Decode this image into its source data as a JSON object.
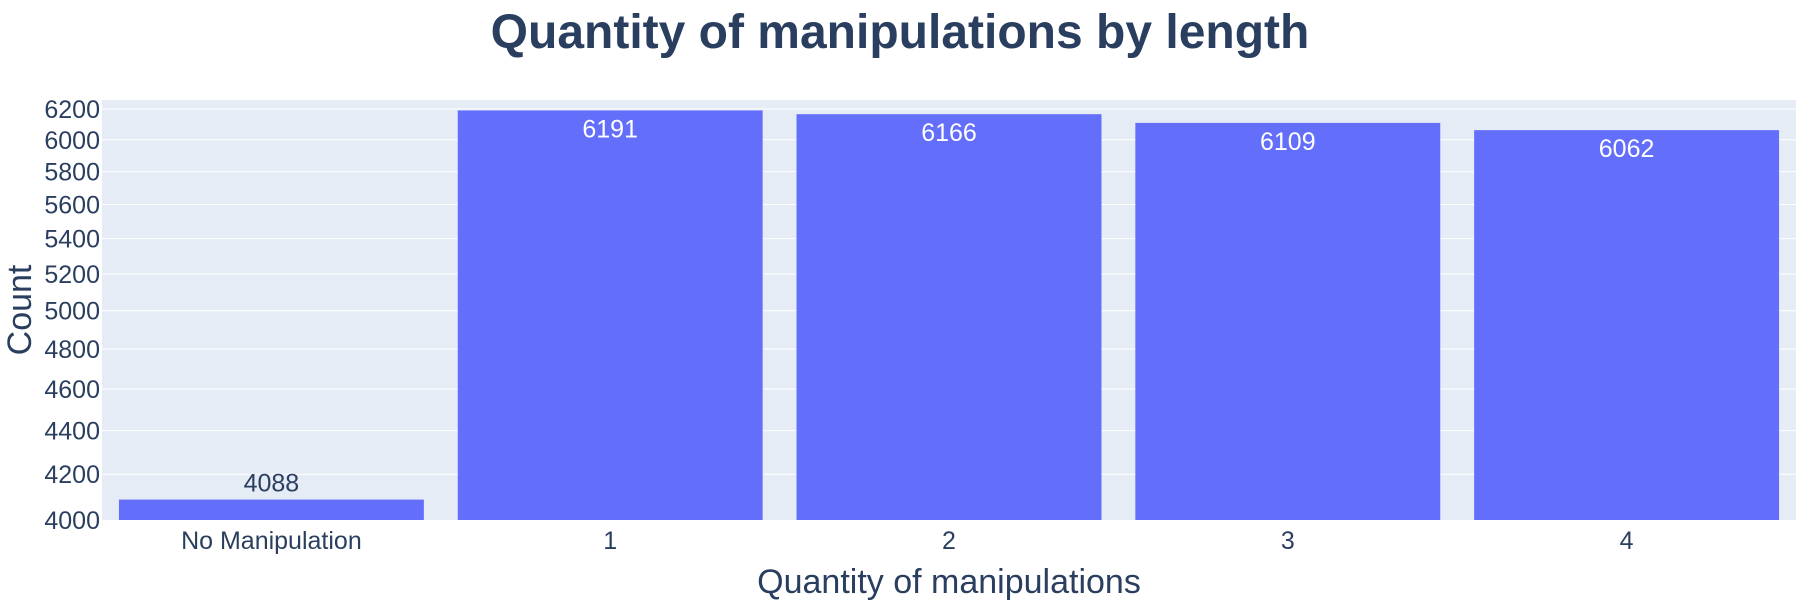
{
  "chart_data": {
    "type": "bar",
    "title": "Quantity of manipulations by length",
    "xlabel": "Quantity of manipulations",
    "ylabel": "Count",
    "categories": [
      "No Manipulation",
      "1",
      "2",
      "3",
      "4"
    ],
    "values": [
      4088,
      6191,
      6166,
      6109,
      6062
    ],
    "y_scale": "log",
    "ylim": [
      4000,
      6260
    ],
    "yticks": [
      4000,
      4200,
      4400,
      4600,
      4800,
      5000,
      5200,
      5400,
      5600,
      5800,
      6000,
      6200
    ],
    "grid": true,
    "legend": "none",
    "colors": {
      "bar": "#636efa",
      "plot_background": "#e5ecf6",
      "grid": "#ffffff",
      "text": "#2a3f5f",
      "label_inside": "#ffffff"
    }
  }
}
